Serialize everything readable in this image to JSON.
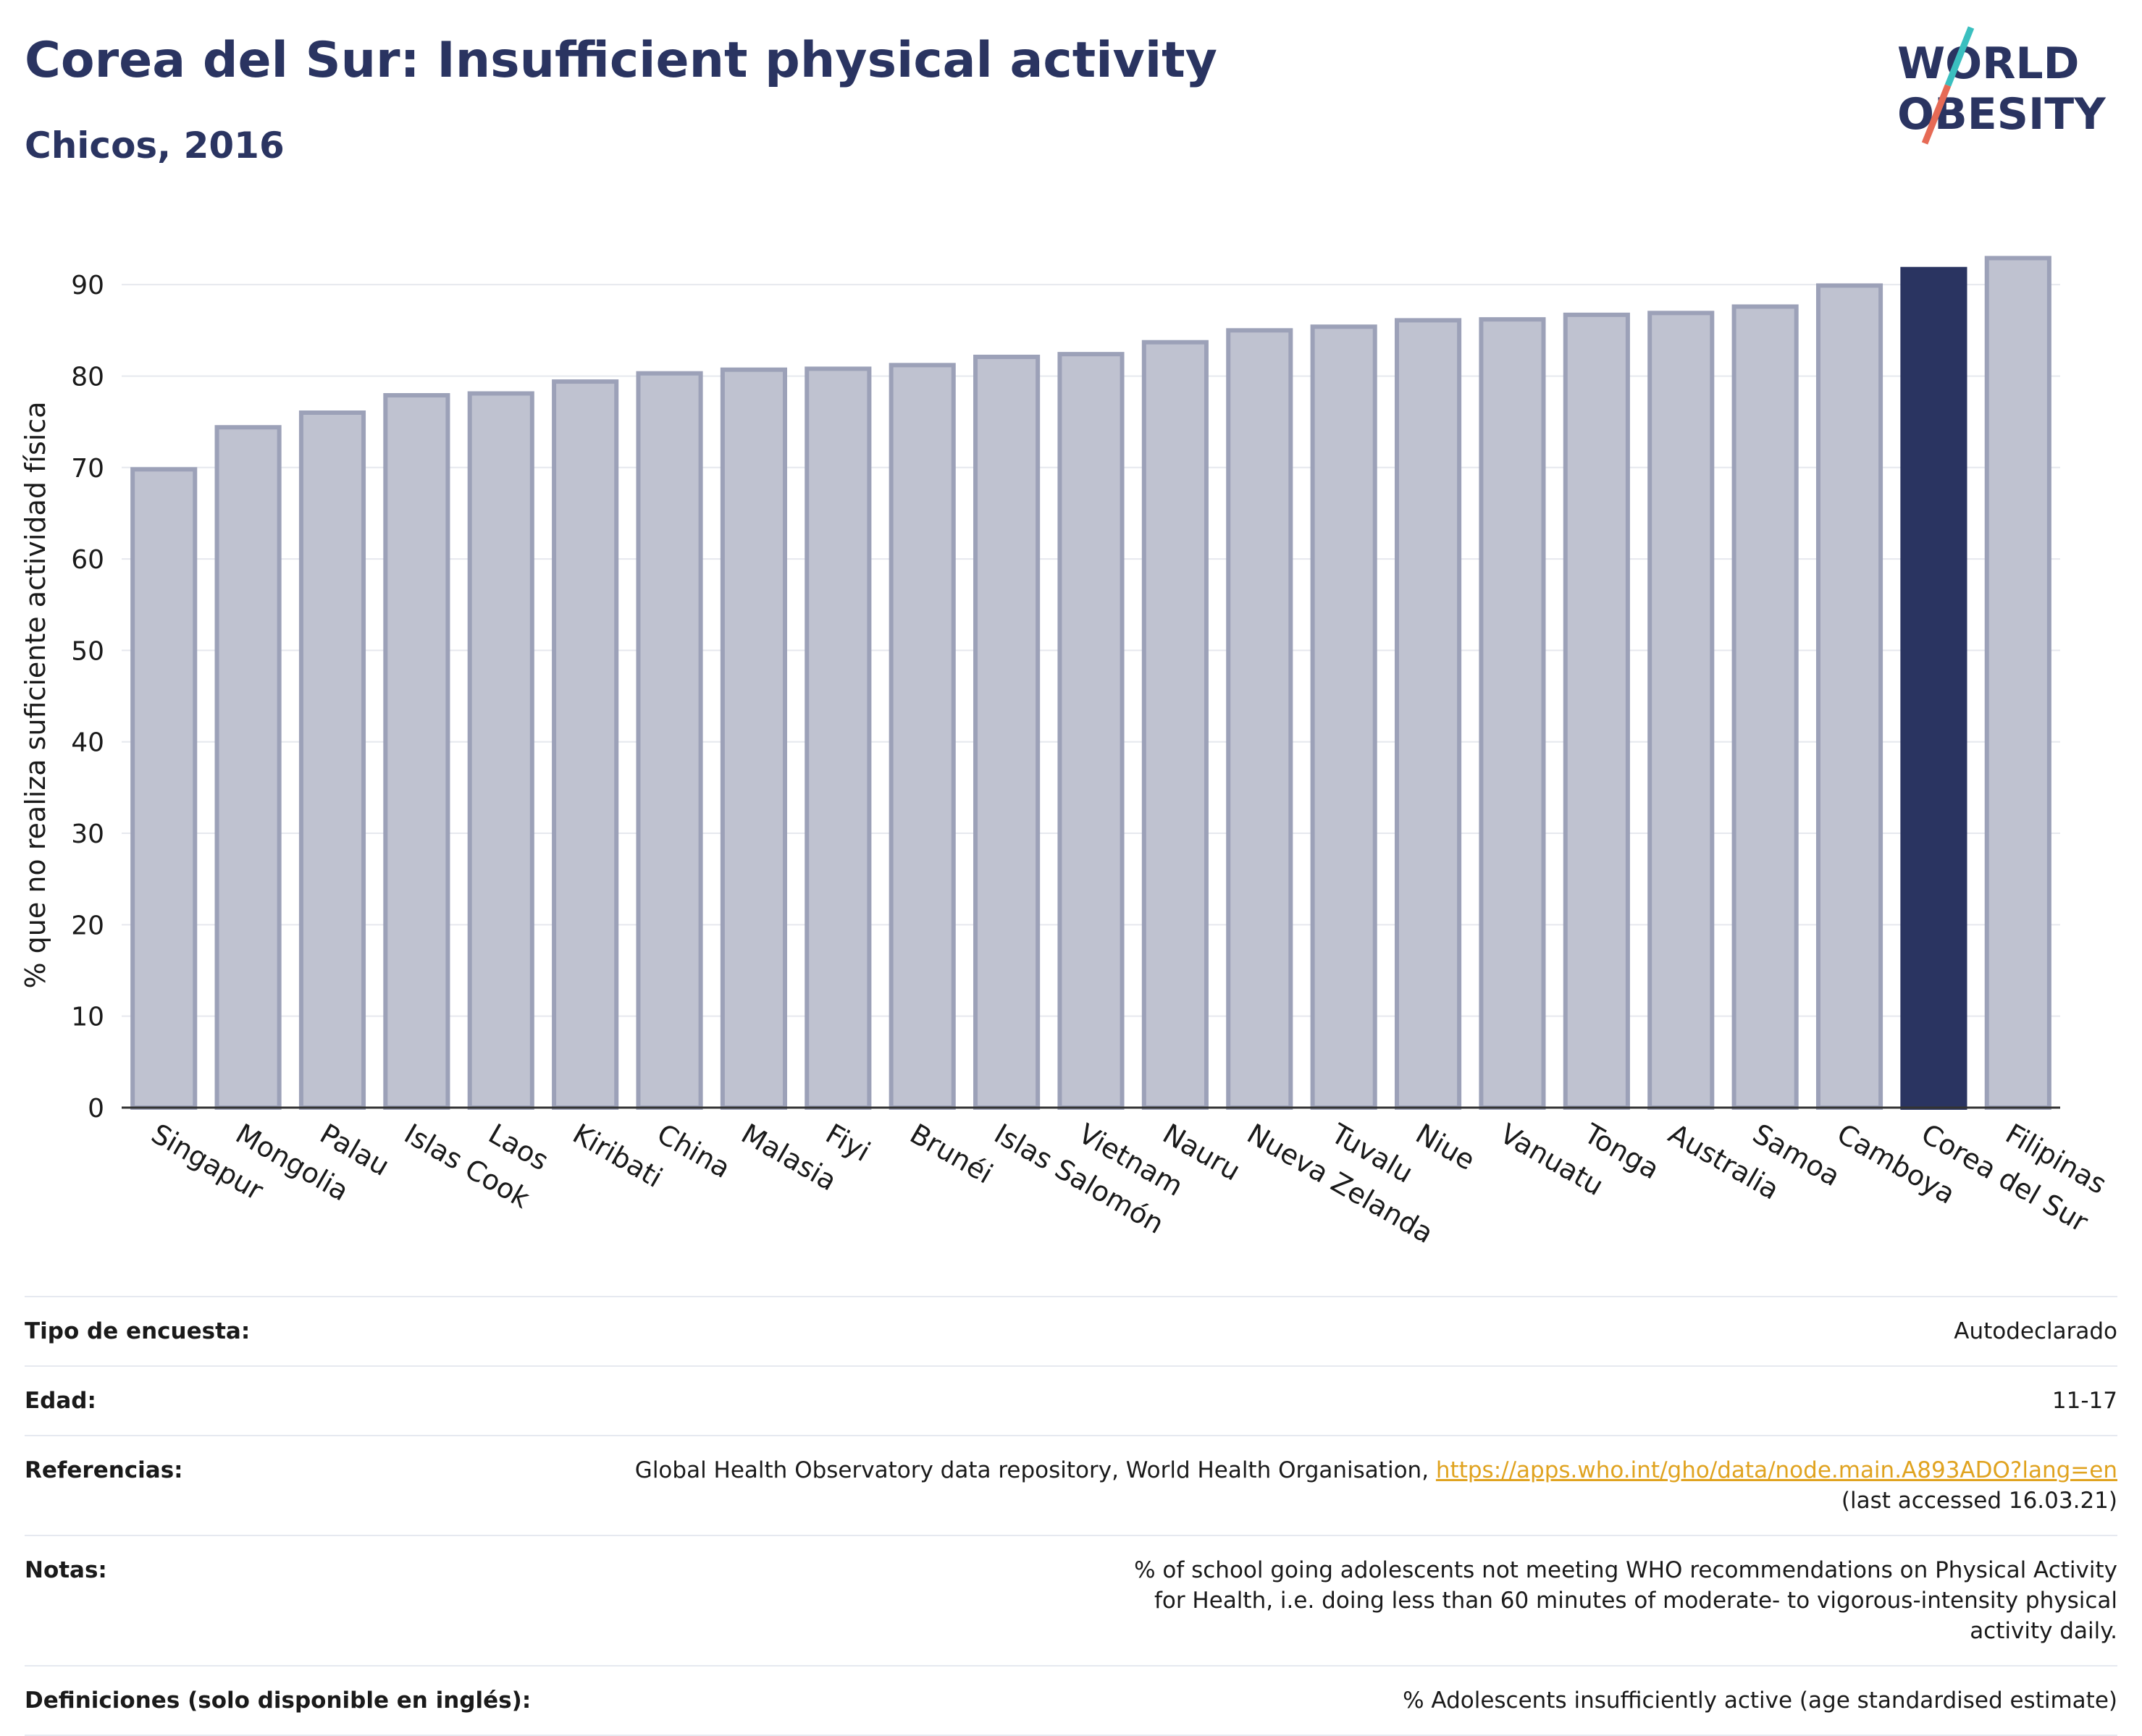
{
  "header": {
    "title": "Corea del Sur: Insufficient physical activity",
    "subtitle": "Chicos, 2016"
  },
  "logo": {
    "line1": "WORLD",
    "line2": "OBESITY",
    "colors": {
      "text": "#2a3461",
      "slash_top": "#3bbfbf",
      "slash_bottom": "#e66a55"
    }
  },
  "colors": {
    "bar_fill": "#bfc2d0",
    "bar_stroke": "#9ca1b8",
    "highlight": "#2a3461",
    "grid": "#e6e8ee",
    "axis": "#333333"
  },
  "chart_data": {
    "type": "bar",
    "ylabel": "% que no realiza suficiente actividad física",
    "xlabel": "",
    "ylim": [
      0,
      95
    ],
    "yticks": [
      0,
      10,
      20,
      30,
      40,
      50,
      60,
      70,
      80,
      90
    ],
    "grid": true,
    "highlight_category": "Corea del Sur",
    "categories": [
      "Singapur",
      "Mongolia",
      "Palau",
      "Islas Cook",
      "Laos",
      "Kiribati",
      "China",
      "Malasia",
      "Fiyi",
      "Brunéi",
      "Islas Salomón",
      "Vietnam",
      "Nauru",
      "Nueva Zelanda",
      "Tuvalu",
      "Niue",
      "Vanuatu",
      "Tonga",
      "Australia",
      "Samoa",
      "Camboya",
      "Corea del Sur",
      "Filipinas"
    ],
    "values": [
      69.8,
      74.4,
      76.0,
      77.9,
      78.1,
      79.4,
      80.3,
      80.7,
      80.8,
      81.2,
      82.1,
      82.4,
      83.7,
      85.0,
      85.4,
      86.1,
      86.2,
      86.7,
      86.9,
      87.6,
      89.9,
      91.7,
      92.9
    ]
  },
  "info": [
    {
      "label": "Tipo de encuesta:",
      "value": "Autodeclarado"
    },
    {
      "label": "Edad:",
      "value": "11-17"
    },
    {
      "label": "Referencias:",
      "value": "Global Health Observatory data repository, World Health Organisation, ",
      "link": "https://apps.who.int/gho/data/node.main.A893ADO?lang=en",
      "suffix": "(last accessed 16.03.21)"
    },
    {
      "label": "Notas:",
      "value": "% of school going adolescents not meeting WHO recommendations on Physical Activity for Health, i.e. doing less than 60 minutes of moderate- to vigorous-intensity physical activity daily."
    },
    {
      "label": "Definiciones (solo disponible en inglés):",
      "value": "% Adolescents insufficiently active (age standardised estimate)"
    }
  ]
}
